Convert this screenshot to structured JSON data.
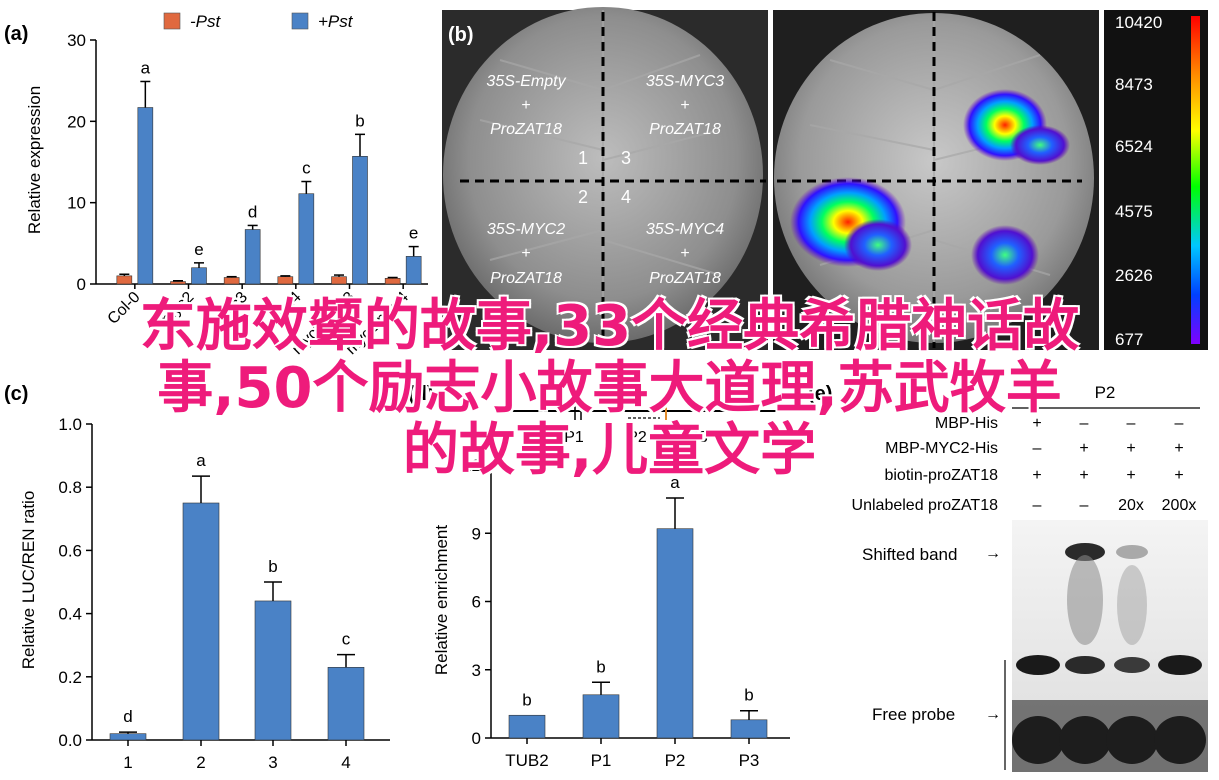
{
  "panels": {
    "a": "(a)",
    "b": "(b)",
    "c": "(c)",
    "d": "(d)",
    "e": "(e)"
  },
  "colors": {
    "minus_pst": "#e0693f",
    "plus_pst": "#4a82c6",
    "overlay_text": "#ee1b7b"
  },
  "panel_a": {
    "legend": [
      "-Pst",
      "+Pst"
    ],
    "ylabel": "Relative expression",
    "y_ticks": [
      "0",
      "10",
      "20",
      "30"
    ],
    "categories": [
      "Col-0",
      "myc2",
      "myc3",
      "myc4",
      "myc2 myc3",
      "myc2 myc4"
    ]
  },
  "panel_b": {
    "labels_top_left": [
      "35S-Empty",
      "+",
      "ProZAT18"
    ],
    "labels_top_right": [
      "35S-MYC3",
      "+",
      "ProZAT18"
    ],
    "labels_bottom_left": [
      "35S-MYC2",
      "+",
      "ProZAT18"
    ],
    "labels_bottom_right": [
      "35S-MYC4",
      "+",
      "ProZAT18"
    ],
    "quadrant_numbers": [
      "1",
      "2",
      "3",
      "4"
    ],
    "colorbar_ticks": [
      "10420",
      "8473",
      "6524",
      "4575",
      "2626",
      "677"
    ]
  },
  "panel_c": {
    "ylabel": "Relative LUC/REN ratio",
    "y_ticks": [
      "0.0",
      "0.2",
      "0.4",
      "0.6",
      "0.8",
      "1.0"
    ]
  },
  "panel_d": {
    "ylabel": "Relative enrichment",
    "y_ticks": [
      "0",
      "3",
      "6",
      "9",
      "12"
    ],
    "gene_labels": [
      "P1",
      "P2",
      "P3"
    ]
  },
  "panel_e": {
    "probe_header": "P2",
    "rows": [
      {
        "label": "MBP-His",
        "cells": [
          "+",
          "–",
          "–",
          "–"
        ]
      },
      {
        "label": "MBP-MYC2-His",
        "cells": [
          "–",
          "+",
          "+",
          "+"
        ]
      },
      {
        "label": "biotin-proZAT18",
        "cells": [
          "+",
          "+",
          "+",
          "+"
        ]
      },
      {
        "label": "Unlabeled proZAT18",
        "cells": [
          "–",
          "–",
          "20x",
          "200x"
        ]
      }
    ],
    "shifted_band": "Shifted band",
    "free_probe": "Free probe"
  },
  "overlay": {
    "line1": "东施效颦的故事,33个经典希腊神话故",
    "line2": "事,50个励志小故事大道理,苏武牧羊",
    "line3": "的故事,儿童文学"
  },
  "chart_data": [
    {
      "type": "bar",
      "panel": "a",
      "ylabel": "Relative expression",
      "ylim": [
        0,
        30
      ],
      "categories": [
        "Col-0",
        "myc2",
        "myc3",
        "myc4",
        "myc2 myc3",
        "myc2 myc4"
      ],
      "series": [
        {
          "name": "-Pst",
          "values": [
            1.0,
            0.3,
            0.8,
            0.9,
            0.9,
            0.7
          ],
          "errors": [
            0.2,
            0.1,
            0.1,
            0.1,
            0.2,
            0.1
          ]
        },
        {
          "name": "+Pst",
          "values": [
            21.7,
            2.0,
            6.7,
            11.1,
            15.7,
            3.4
          ],
          "errors": [
            3.2,
            0.6,
            0.5,
            1.5,
            2.7,
            1.2
          ],
          "letters": [
            "a",
            "e",
            "d",
            "c",
            "b",
            "e"
          ]
        }
      ]
    },
    {
      "type": "bar",
      "panel": "c",
      "ylabel": "Relative LUC/REN ratio",
      "ylim": [
        0,
        1.0
      ],
      "categories": [
        "1",
        "2",
        "3",
        "4"
      ],
      "values": [
        0.02,
        0.75,
        0.44,
        0.23
      ],
      "errors": [
        0.005,
        0.085,
        0.06,
        0.04
      ],
      "letters": [
        "d",
        "a",
        "b",
        "c"
      ]
    },
    {
      "type": "bar",
      "panel": "d",
      "ylabel": "Relative enrichment",
      "ylim": [
        0,
        12
      ],
      "categories": [
        "TUB2",
        "P1",
        "P2",
        "P3"
      ],
      "values": [
        1.0,
        1.9,
        9.2,
        0.8
      ],
      "errors": [
        0,
        0.55,
        1.35,
        0.4
      ],
      "letters": [
        "b",
        "b",
        "a",
        "b"
      ]
    }
  ]
}
